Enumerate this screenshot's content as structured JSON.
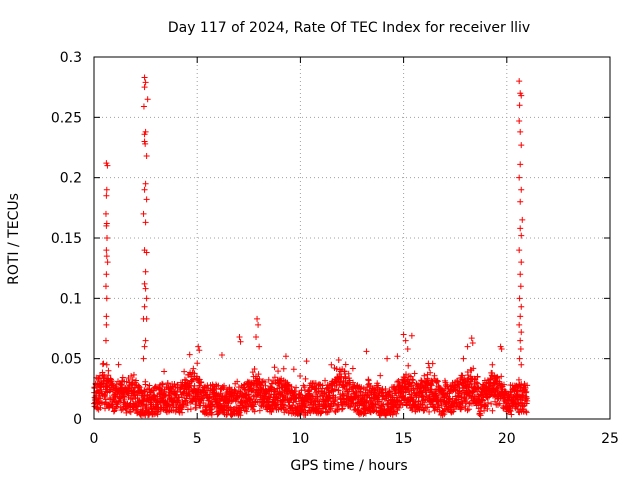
{
  "chart_data": {
    "type": "scatter",
    "title": "Day 117 of 2024, Rate Of TEC Index for receiver lliv",
    "xlabel": "GPS time / hours",
    "ylabel": "ROTI / TECUs",
    "xlim": [
      0,
      25
    ],
    "ylim": [
      0,
      0.3
    ],
    "x_ticks": [
      0,
      5,
      10,
      15,
      20,
      25
    ],
    "y_ticks": [
      0,
      0.05,
      0.1,
      0.15,
      0.2,
      0.25,
      0.3
    ],
    "x_tick_labels": [
      "0",
      "5",
      "10",
      "15",
      "20",
      "25"
    ],
    "y_tick_labels": [
      "0",
      "0.05",
      "0.1",
      "0.15",
      "0.2",
      "0.25",
      "0.3"
    ],
    "grid": true,
    "marker": "+",
    "color": "#ff0000",
    "time_span_hours": [
      0,
      21
    ],
    "background_level": [
      0.005,
      0.03
    ],
    "series": [
      {
        "name": "ROTI",
        "points": [
          [
            0.6,
            0.212
          ],
          [
            0.65,
            0.21
          ],
          [
            0.62,
            0.19
          ],
          [
            0.6,
            0.185
          ],
          [
            0.58,
            0.17
          ],
          [
            0.62,
            0.162
          ],
          [
            0.6,
            0.16
          ],
          [
            0.63,
            0.15
          ],
          [
            0.6,
            0.14
          ],
          [
            0.62,
            0.135
          ],
          [
            0.66,
            0.13
          ],
          [
            0.6,
            0.12
          ],
          [
            0.58,
            0.11
          ],
          [
            0.62,
            0.1
          ],
          [
            0.6,
            0.085
          ],
          [
            0.6,
            0.078
          ],
          [
            0.58,
            0.065
          ],
          [
            0.62,
            0.045
          ],
          [
            0.7,
            0.04
          ],
          [
            2.45,
            0.283
          ],
          [
            2.5,
            0.279
          ],
          [
            2.45,
            0.275
          ],
          [
            2.42,
            0.259
          ],
          [
            2.6,
            0.265
          ],
          [
            2.5,
            0.238
          ],
          [
            2.45,
            0.236
          ],
          [
            2.45,
            0.23
          ],
          [
            2.48,
            0.228
          ],
          [
            2.55,
            0.218
          ],
          [
            2.5,
            0.195
          ],
          [
            2.45,
            0.19
          ],
          [
            2.55,
            0.182
          ],
          [
            2.4,
            0.17
          ],
          [
            2.5,
            0.163
          ],
          [
            2.45,
            0.14
          ],
          [
            2.55,
            0.138
          ],
          [
            2.5,
            0.122
          ],
          [
            2.45,
            0.112
          ],
          [
            2.5,
            0.108
          ],
          [
            2.55,
            0.1
          ],
          [
            2.45,
            0.093
          ],
          [
            2.4,
            0.083
          ],
          [
            2.55,
            0.083
          ],
          [
            2.5,
            0.065
          ],
          [
            2.45,
            0.06
          ],
          [
            2.4,
            0.05
          ],
          [
            5.05,
            0.06
          ],
          [
            5.1,
            0.057
          ],
          [
            6.2,
            0.053
          ],
          [
            7.05,
            0.068
          ],
          [
            7.1,
            0.064
          ],
          [
            7.9,
            0.083
          ],
          [
            7.95,
            0.078
          ],
          [
            7.85,
            0.068
          ],
          [
            8.0,
            0.06
          ],
          [
            9.3,
            0.052
          ],
          [
            10.3,
            0.048
          ],
          [
            11.5,
            0.045
          ],
          [
            13.2,
            0.056
          ],
          [
            14.2,
            0.05
          ],
          [
            14.7,
            0.052
          ],
          [
            15.0,
            0.07
          ],
          [
            15.1,
            0.065
          ],
          [
            15.4,
            0.069
          ],
          [
            15.2,
            0.058
          ],
          [
            16.2,
            0.046
          ],
          [
            17.9,
            0.05
          ],
          [
            18.1,
            0.06
          ],
          [
            18.3,
            0.067
          ],
          [
            18.35,
            0.063
          ],
          [
            19.3,
            0.045
          ],
          [
            19.7,
            0.06
          ],
          [
            19.75,
            0.058
          ],
          [
            20.6,
            0.28
          ],
          [
            20.65,
            0.27
          ],
          [
            20.7,
            0.268
          ],
          [
            20.62,
            0.26
          ],
          [
            20.6,
            0.247
          ],
          [
            20.65,
            0.238
          ],
          [
            20.7,
            0.227
          ],
          [
            20.65,
            0.211
          ],
          [
            20.6,
            0.2
          ],
          [
            20.7,
            0.19
          ],
          [
            20.65,
            0.18
          ],
          [
            20.75,
            0.165
          ],
          [
            20.65,
            0.158
          ],
          [
            20.7,
            0.152
          ],
          [
            20.6,
            0.14
          ],
          [
            20.7,
            0.13
          ],
          [
            20.65,
            0.12
          ],
          [
            20.68,
            0.11
          ],
          [
            20.62,
            0.1
          ],
          [
            20.7,
            0.093
          ],
          [
            20.65,
            0.085
          ],
          [
            20.6,
            0.078
          ],
          [
            20.7,
            0.072
          ],
          [
            20.65,
            0.065
          ],
          [
            20.68,
            0.058
          ],
          [
            20.62,
            0.05
          ],
          [
            20.7,
            0.045
          ]
        ]
      }
    ]
  }
}
